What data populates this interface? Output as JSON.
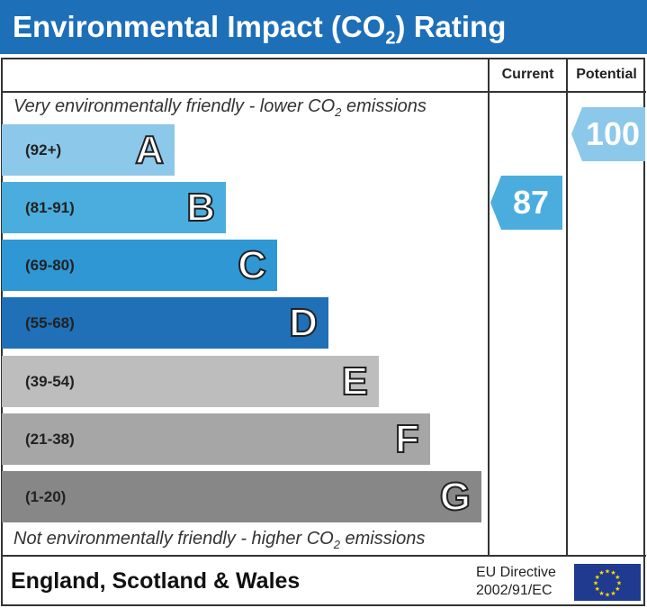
{
  "title": {
    "text": "Environmental Impact (CO",
    "sub": "2",
    "after": ") Rating"
  },
  "columns": {
    "current": "Current",
    "potential": "Potential"
  },
  "notes": {
    "top": {
      "a": "Very environmentally friendly - lower CO",
      "sub": "2",
      "b": " emissions"
    },
    "bottom": {
      "a": "Not environmentally friendly - higher CO",
      "sub": "2",
      "b": " emissions"
    }
  },
  "chart_data": {
    "type": "bar",
    "bands": [
      {
        "letter": "A",
        "range": "(92+)",
        "color": "#8cc8ea"
      },
      {
        "letter": "B",
        "range": "(81-91)",
        "color": "#4aaddd"
      },
      {
        "letter": "C",
        "range": "(69-80)",
        "color": "#2e97d4"
      },
      {
        "letter": "D",
        "range": "(55-68)",
        "color": "#1f70b6"
      },
      {
        "letter": "E",
        "range": "(39-54)",
        "color": "#bdbdbd"
      },
      {
        "letter": "F",
        "range": "(21-38)",
        "color": "#a6a6a6"
      },
      {
        "letter": "G",
        "range": "(1-20)",
        "color": "#878787"
      }
    ],
    "current": {
      "value": "87",
      "band": "B",
      "color": "#4aaddd"
    },
    "potential": {
      "value": "100",
      "band": "A",
      "color": "#8cc8ea"
    }
  },
  "footer": {
    "region": "England, Scotland & Wales",
    "directive_line1": "EU Directive",
    "directive_line2": "2002/91/EC",
    "flag": "eu-flag-icon"
  }
}
